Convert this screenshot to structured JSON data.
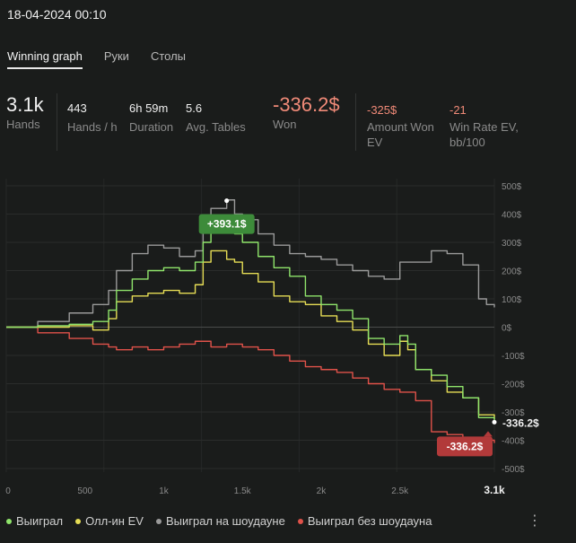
{
  "session": {
    "date": "18-04-2024 00:10"
  },
  "tabs": [
    {
      "label": "Winning graph",
      "active": true
    },
    {
      "label": "Руки",
      "active": false
    },
    {
      "label": "Столы",
      "active": false
    }
  ],
  "stats": {
    "hands": {
      "value": "3.1k",
      "label": "Hands"
    },
    "hands_per_hour": {
      "value": "443",
      "label": "Hands / h"
    },
    "duration": {
      "value": "6h 59m",
      "label": "Duration"
    },
    "avg_tables": {
      "value": "5.6",
      "label": "Avg. Tables"
    },
    "won": {
      "value": "-336.2$",
      "label": "Won"
    },
    "amount_won_ev": {
      "value": "-325$",
      "label_line1": "Amount Won",
      "label_line2": "EV"
    },
    "win_rate_ev": {
      "value": "-21",
      "label_line1": "Win Rate EV,",
      "label_line2": "bb/100"
    }
  },
  "colors": {
    "won": "#8fe46b",
    "allin_ev": "#e6dd55",
    "showdown": "#9a9a9a",
    "non_showdown": "#e0524a",
    "peak_badge": "#3d8b3a",
    "end_badge": "#b23a3a",
    "negative_text": "#f08a78"
  },
  "chart_data": {
    "type": "line",
    "x_ticks": [
      "0",
      "500",
      "1k",
      "1.5k",
      "2k",
      "2.5k",
      "3.1k"
    ],
    "x_tick_values": [
      0,
      500,
      1000,
      1500,
      2000,
      2500,
      3100
    ],
    "y_ticks": [
      "500$",
      "400$",
      "300$",
      "200$",
      "100$",
      "0$",
      "-100$",
      "-200$",
      "-300$",
      "-400$",
      "-500$"
    ],
    "y_tick_values": [
      500,
      400,
      300,
      200,
      100,
      0,
      -100,
      -200,
      -300,
      -400,
      -500
    ],
    "xlim": [
      0,
      3100
    ],
    "ylim": [
      -500,
      500
    ],
    "grid": true,
    "legend_position": "bottom",
    "series": [
      {
        "name": "Выиграл",
        "color_key": "won",
        "points": [
          [
            0,
            0
          ],
          [
            200,
            5
          ],
          [
            400,
            10
          ],
          [
            550,
            20
          ],
          [
            650,
            60
          ],
          [
            700,
            130
          ],
          [
            800,
            170
          ],
          [
            900,
            200
          ],
          [
            1000,
            210
          ],
          [
            1100,
            200
          ],
          [
            1200,
            230
          ],
          [
            1250,
            300
          ],
          [
            1300,
            360
          ],
          [
            1400,
            390
          ],
          [
            1450,
            330
          ],
          [
            1500,
            300
          ],
          [
            1600,
            250
          ],
          [
            1700,
            210
          ],
          [
            1800,
            180
          ],
          [
            1900,
            110
          ],
          [
            2000,
            80
          ],
          [
            2100,
            60
          ],
          [
            2200,
            30
          ],
          [
            2300,
            -40
          ],
          [
            2400,
            -60
          ],
          [
            2500,
            -30
          ],
          [
            2550,
            -60
          ],
          [
            2600,
            -150
          ],
          [
            2700,
            -170
          ],
          [
            2800,
            -210
          ],
          [
            2900,
            -250
          ],
          [
            3000,
            -320
          ],
          [
            3100,
            -336
          ]
        ]
      },
      {
        "name": "Олл-ин EV",
        "color_key": "allin_ev",
        "points": [
          [
            0,
            0
          ],
          [
            200,
            0
          ],
          [
            400,
            5
          ],
          [
            550,
            -10
          ],
          [
            650,
            30
          ],
          [
            700,
            90
          ],
          [
            800,
            110
          ],
          [
            900,
            120
          ],
          [
            1000,
            130
          ],
          [
            1100,
            120
          ],
          [
            1200,
            150
          ],
          [
            1250,
            230
          ],
          [
            1300,
            270
          ],
          [
            1400,
            240
          ],
          [
            1450,
            230
          ],
          [
            1500,
            190
          ],
          [
            1600,
            160
          ],
          [
            1700,
            110
          ],
          [
            1800,
            90
          ],
          [
            1900,
            80
          ],
          [
            2000,
            40
          ],
          [
            2100,
            20
          ],
          [
            2200,
            -10
          ],
          [
            2300,
            -60
          ],
          [
            2400,
            -100
          ],
          [
            2500,
            -50
          ],
          [
            2550,
            -80
          ],
          [
            2600,
            -150
          ],
          [
            2700,
            -190
          ],
          [
            2800,
            -230
          ],
          [
            2900,
            -250
          ],
          [
            3000,
            -310
          ],
          [
            3100,
            -325
          ]
        ]
      },
      {
        "name": "Выиграл на шоудауне",
        "color_key": "showdown",
        "points": [
          [
            0,
            0
          ],
          [
            200,
            20
          ],
          [
            400,
            50
          ],
          [
            550,
            80
          ],
          [
            650,
            130
          ],
          [
            700,
            200
          ],
          [
            800,
            260
          ],
          [
            900,
            290
          ],
          [
            1000,
            280
          ],
          [
            1100,
            250
          ],
          [
            1200,
            270
          ],
          [
            1250,
            390
          ],
          [
            1300,
            420
          ],
          [
            1400,
            450
          ],
          [
            1450,
            400
          ],
          [
            1500,
            380
          ],
          [
            1600,
            330
          ],
          [
            1700,
            290
          ],
          [
            1800,
            260
          ],
          [
            1900,
            250
          ],
          [
            2000,
            240
          ],
          [
            2100,
            220
          ],
          [
            2200,
            200
          ],
          [
            2300,
            180
          ],
          [
            2400,
            170
          ],
          [
            2500,
            230
          ],
          [
            2600,
            230
          ],
          [
            2700,
            270
          ],
          [
            2800,
            260
          ],
          [
            2900,
            220
          ],
          [
            3000,
            100
          ],
          [
            3050,
            80
          ],
          [
            3100,
            70
          ]
        ]
      },
      {
        "name": "Выиграл без шоудауна",
        "color_key": "non_showdown",
        "points": [
          [
            0,
            0
          ],
          [
            200,
            -20
          ],
          [
            400,
            -40
          ],
          [
            550,
            -60
          ],
          [
            650,
            -70
          ],
          [
            700,
            -80
          ],
          [
            800,
            -70
          ],
          [
            900,
            -80
          ],
          [
            1000,
            -70
          ],
          [
            1100,
            -60
          ],
          [
            1200,
            -50
          ],
          [
            1300,
            -70
          ],
          [
            1400,
            -60
          ],
          [
            1500,
            -70
          ],
          [
            1600,
            -80
          ],
          [
            1700,
            -100
          ],
          [
            1800,
            -120
          ],
          [
            1900,
            -140
          ],
          [
            2000,
            -150
          ],
          [
            2100,
            -160
          ],
          [
            2200,
            -180
          ],
          [
            2300,
            -200
          ],
          [
            2400,
            -220
          ],
          [
            2500,
            -230
          ],
          [
            2600,
            -260
          ],
          [
            2700,
            -370
          ],
          [
            2800,
            -380
          ],
          [
            2900,
            -390
          ],
          [
            3000,
            -400
          ],
          [
            3100,
            -410
          ]
        ]
      }
    ],
    "annotations": [
      {
        "label": "+393.1$",
        "x": 1400,
        "y": 393.1,
        "color_key": "peak_badge"
      },
      {
        "label": "-336.2$",
        "x": 3100,
        "y": -336.2,
        "color_key": "end_badge"
      }
    ],
    "end_label": "-336.2$"
  },
  "menu": {
    "more_icon": "⋮"
  }
}
